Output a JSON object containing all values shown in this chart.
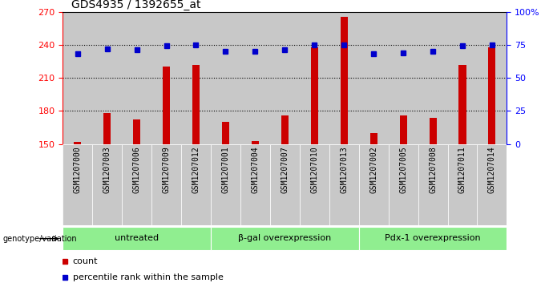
{
  "title": "GDS4935 / 1392655_at",
  "samples": [
    "GSM1207000",
    "GSM1207003",
    "GSM1207006",
    "GSM1207009",
    "GSM1207012",
    "GSM1207001",
    "GSM1207004",
    "GSM1207007",
    "GSM1207010",
    "GSM1207013",
    "GSM1207002",
    "GSM1207005",
    "GSM1207008",
    "GSM1207011",
    "GSM1207014"
  ],
  "counts": [
    152,
    178,
    172,
    220,
    222,
    170,
    153,
    176,
    238,
    265,
    160,
    176,
    174,
    222,
    238
  ],
  "percentiles": [
    68,
    72,
    71,
    74,
    75,
    70,
    70,
    71,
    75,
    75,
    68,
    69,
    70,
    74,
    75
  ],
  "groups": [
    {
      "label": "untreated",
      "start": 0,
      "end": 5
    },
    {
      "label": "β-gal overexpression",
      "start": 5,
      "end": 10
    },
    {
      "label": "Pdx-1 overexpression",
      "start": 10,
      "end": 15
    }
  ],
  "ylim_left": [
    150,
    270
  ],
  "ylim_right": [
    0,
    100
  ],
  "yticks_left": [
    150,
    180,
    210,
    240,
    270
  ],
  "yticks_right": [
    0,
    25,
    50,
    75,
    100
  ],
  "ytick_labels_right": [
    "0",
    "25",
    "50",
    "75",
    "100%"
  ],
  "bar_color": "#cc0000",
  "dot_color": "#0000cc",
  "col_bg_color": "#c8c8c8",
  "group_bg": "#90ee90",
  "legend_label_count": "count",
  "legend_label_pct": "percentile rank within the sample",
  "genotype_label": "genotype/variation"
}
